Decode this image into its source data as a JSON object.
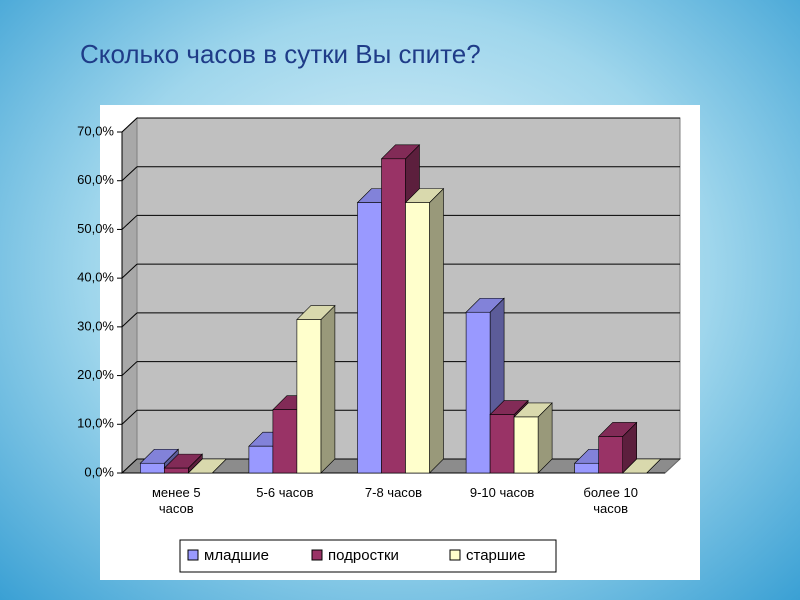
{
  "chart_data": {
    "type": "bar3d",
    "title": "Сколько часов в сутки Вы спите?",
    "categories": [
      "менее 5 часов",
      "5-6 часов",
      "7-8 часов",
      "9-10 часов",
      "более 10 часов"
    ],
    "series": [
      {
        "name": "младшие",
        "color": "#9999ff",
        "values": [
          2,
          5.5,
          55.5,
          33,
          2
        ]
      },
      {
        "name": "подростки",
        "color": "#993366",
        "values": [
          1,
          13,
          64.5,
          12,
          7.5
        ]
      },
      {
        "name": "старшие",
        "color": "#ffffcc",
        "values": [
          0,
          31.5,
          55.5,
          11.5,
          0
        ]
      }
    ],
    "ylim": [
      0,
      70
    ],
    "yticks": [
      {
        "value": 0,
        "label": "0,0%"
      },
      {
        "value": 10,
        "label": "10,0%"
      },
      {
        "value": 20,
        "label": "20,0%"
      },
      {
        "value": 30,
        "label": "30,0%"
      },
      {
        "value": 40,
        "label": "40,0%"
      },
      {
        "value": 50,
        "label": "50,0%"
      },
      {
        "value": 60,
        "label": "60,0%"
      },
      {
        "value": 70,
        "label": "70,0%"
      }
    ],
    "grid": true,
    "legend": "bottom"
  }
}
